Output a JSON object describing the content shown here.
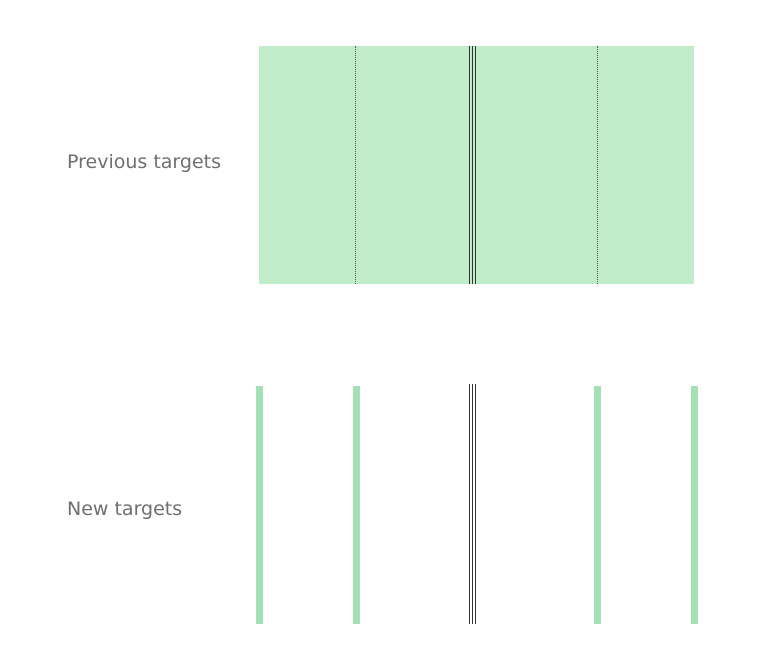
{
  "rows": {
    "previous": {
      "label": "Previous targets"
    },
    "new": {
      "label": "New targets"
    }
  },
  "colors": {
    "target_fill": "#c1ecca",
    "target_bar": "#a3e0b4",
    "center_line": "#333333",
    "dotted_line": "#555555",
    "label_text": "#6f6f6f"
  }
}
